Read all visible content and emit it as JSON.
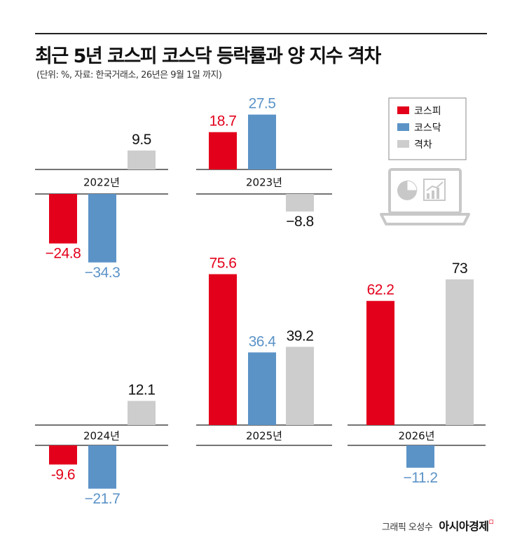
{
  "title": "최근 5년 코스피 코스닥 등락률과 양 지수 격차",
  "subtitle": "(단위: %, 자료: 한국거래소, 26년은 9월 1일 까지)",
  "legend": [
    {
      "label": "코스피",
      "color": "#e3001b"
    },
    {
      "label": "코스닥",
      "color": "#5b93c7"
    },
    {
      "label": "격차",
      "color": "#cdcdcd"
    }
  ],
  "icon": "laptop-with-charts-icon",
  "credit": {
    "by": "그래픽 오성수",
    "brand": "아시아경제"
  },
  "chart_data": {
    "type": "bar",
    "series_names": [
      "코스피",
      "코스닥",
      "격차"
    ],
    "colors": [
      "#e3001b",
      "#5b93c7",
      "#cdcdcd"
    ],
    "unit": "%",
    "panels": [
      {
        "year": "2022년",
        "values": [
          -24.8,
          -34.3,
          9.5
        ],
        "labels": [
          "−24.8",
          "−34.3",
          "9.5"
        ]
      },
      {
        "year": "2023년",
        "values": [
          18.7,
          27.5,
          -8.8
        ],
        "labels": [
          "18.7",
          "27.5",
          "−8.8"
        ]
      },
      {
        "year": "2024년",
        "values": [
          -9.6,
          -21.7,
          12.1
        ],
        "labels": [
          "-9.6",
          "−21.7",
          "12.1"
        ]
      },
      {
        "year": "2025년",
        "values": [
          75.6,
          36.4,
          39.2
        ],
        "labels": [
          "75.6",
          "36.4",
          "39.2"
        ]
      },
      {
        "year": "2026년",
        "values": [
          62.2,
          -11.2,
          73
        ],
        "labels": [
          "62.2",
          "−11.2",
          "73"
        ]
      }
    ]
  }
}
